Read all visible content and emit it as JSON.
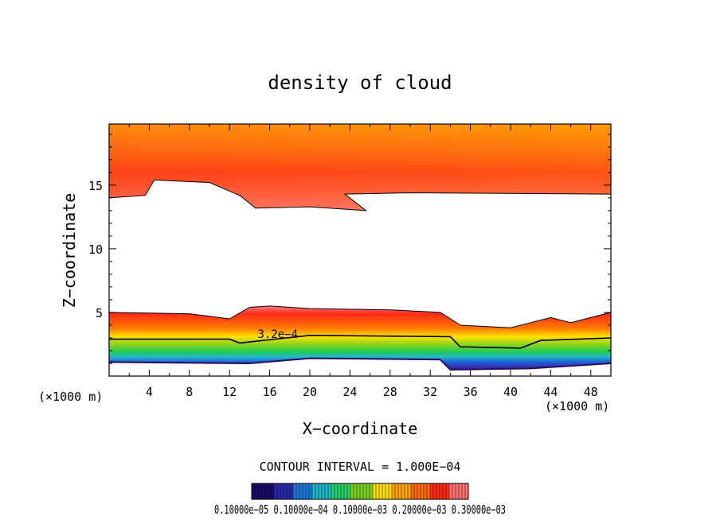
{
  "chart_data": {
    "type": "heatmap",
    "title": "density of cloud",
    "xlabel": "X−coordinate",
    "ylabel": "Z−coordinate",
    "x_unit": "(×1000 m)",
    "y_unit": "(×1000 m)",
    "xlim": [
      0,
      50
    ],
    "ylim": [
      0,
      19.8
    ],
    "x_ticks": [
      "4",
      "8",
      "12",
      "16",
      "20",
      "24",
      "28",
      "32",
      "36",
      "40",
      "44",
      "48"
    ],
    "x_tick_values": [
      4,
      8,
      12,
      16,
      20,
      24,
      28,
      32,
      36,
      40,
      44,
      48
    ],
    "y_ticks": [
      "5",
      "10",
      "15"
    ],
    "y_tick_values": [
      5,
      10,
      15
    ],
    "contour_interval_text": "CONTOUR INTERVAL = 1.000E−04",
    "contour_label": "3.2e−4",
    "colorbar_labels_text": "0.10000e−05 0.10000e−04 0.10000e−03 0.20000e−03 0.30000e−03",
    "colormap": [
      "#1b0a6e",
      "#2a2aa8",
      "#1e78d8",
      "#22b8c8",
      "#28d06a",
      "#7ad020",
      "#ffe000",
      "#ffa500",
      "#ff6a00",
      "#ff2a1a",
      "#ff7070"
    ],
    "upper_layer": {
      "base_z_km": [
        [
          0,
          14.0
        ],
        [
          3.6,
          14.2
        ],
        [
          4.5,
          15.4
        ],
        [
          10,
          15.2
        ],
        [
          13,
          14.2
        ],
        [
          14.6,
          13.2
        ],
        [
          20,
          13.3
        ],
        [
          25.6,
          13.0
        ],
        [
          23.5,
          14.3
        ],
        [
          30,
          14.4
        ],
        [
          50,
          14.3
        ]
      ],
      "top_z_km": 19.8
    },
    "lower_layer": {
      "top_z_km": [
        [
          0,
          5.0
        ],
        [
          8,
          4.9
        ],
        [
          12,
          4.5
        ],
        [
          14,
          5.4
        ],
        [
          16,
          5.5
        ],
        [
          20,
          5.3
        ],
        [
          28,
          5.2
        ],
        [
          33,
          5.0
        ],
        [
          35,
          4.0
        ],
        [
          40,
          3.8
        ],
        [
          42,
          4.2
        ],
        [
          44,
          4.6
        ],
        [
          46,
          4.2
        ],
        [
          50,
          5.0
        ]
      ],
      "contour_3_2e4_z_km": [
        [
          0,
          2.9
        ],
        [
          12,
          2.9
        ],
        [
          13,
          2.6
        ],
        [
          20,
          3.2
        ],
        [
          34,
          3.1
        ],
        [
          35,
          2.3
        ],
        [
          41,
          2.2
        ],
        [
          43,
          2.8
        ],
        [
          50,
          3.0
        ]
      ],
      "base_z_km": [
        [
          0,
          1.1
        ],
        [
          14,
          1.0
        ],
        [
          20,
          1.4
        ],
        [
          33,
          1.3
        ],
        [
          34,
          0.5
        ],
        [
          42,
          0.6
        ],
        [
          50,
          1.0
        ]
      ]
    }
  }
}
